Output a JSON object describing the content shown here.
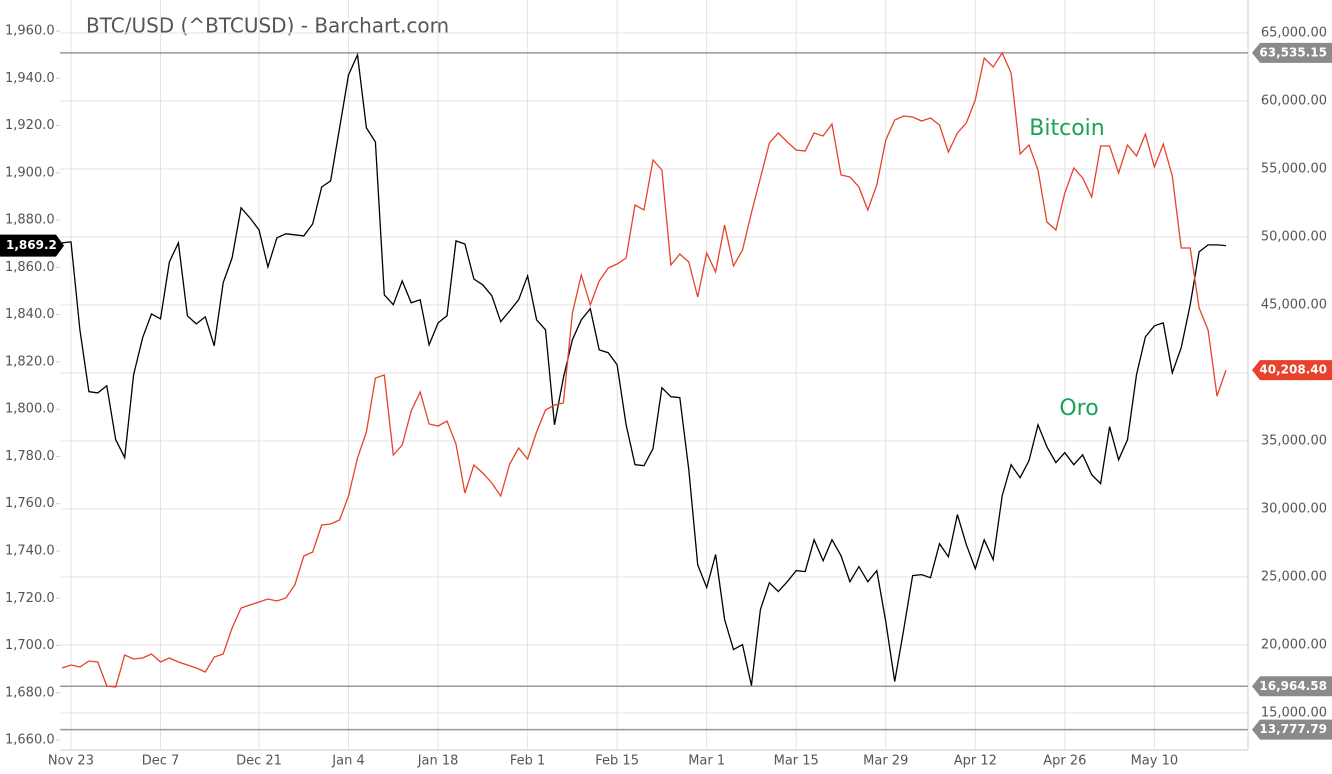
{
  "chart_data": {
    "type": "line",
    "title": "BTC/USD (^BTCUSD) - Barchart.com",
    "categories": [
      null,
      "Nov 23",
      null,
      null,
      null,
      null,
      null,
      null,
      null,
      null,
      null,
      "Dec 7",
      null,
      null,
      null,
      null,
      null,
      null,
      null,
      null,
      null,
      null,
      "Dec 21",
      null,
      null,
      null,
      null,
      null,
      null,
      null,
      null,
      null,
      "Jan 4",
      null,
      null,
      null,
      null,
      null,
      null,
      null,
      null,
      null,
      "Jan 18",
      null,
      null,
      null,
      null,
      null,
      null,
      null,
      null,
      null,
      "Feb 1",
      null,
      null,
      null,
      null,
      null,
      null,
      null,
      null,
      null,
      "Feb 15",
      null,
      null,
      null,
      null,
      null,
      null,
      null,
      null,
      null,
      "Mar 1",
      null,
      null,
      null,
      null,
      null,
      null,
      null,
      null,
      null,
      "Mar 15",
      null,
      null,
      null,
      null,
      null,
      null,
      null,
      null,
      null,
      "Mar 29",
      null,
      null,
      null,
      null,
      null,
      null,
      null,
      null,
      null,
      "Apr 12",
      null,
      null,
      null,
      null,
      null,
      null,
      null,
      null,
      null,
      "Apr 26",
      null,
      null,
      null,
      null,
      null,
      null,
      null,
      null,
      null,
      "May 10",
      null,
      null,
      null,
      null,
      null,
      null,
      null,
      null
    ],
    "series": [
      {
        "name": "Oro",
        "color": "#000000",
        "axis": "y",
        "last_value_label": "1,869.2",
        "values": [
          1870.4,
          1870.8,
          1833.6,
          1807.4,
          1806.9,
          1809.9,
          1787.1,
          1779.5,
          1814.6,
          1830.2,
          1840.3,
          1838.2,
          1862.3,
          1870.4,
          1839.5,
          1836.1,
          1839.1,
          1826.8,
          1853.5,
          1864.0,
          1885.2,
          1880.9,
          1875.9,
          1860.2,
          1872.5,
          1874.2,
          1873.8,
          1873.3,
          1878.4,
          1894.0,
          1896.6,
          1919.0,
          1941.4,
          1949.9,
          1919.0,
          1913.1,
          1848.4,
          1844.2,
          1854.3,
          1845.0,
          1846.3,
          1827.2,
          1836.5,
          1839.5,
          1871.2,
          1869.9,
          1855.1,
          1852.6,
          1848.0,
          1837.0,
          1841.6,
          1846.3,
          1856.4,
          1837.8,
          1833.6,
          1793.4,
          1813.3,
          1829.4,
          1837.8,
          1842.5,
          1825.1,
          1823.9,
          1818.8,
          1793.4,
          1776.5,
          1776.1,
          1783.3,
          1809.1,
          1805.3,
          1804.9,
          1774.4,
          1734.2,
          1724.5,
          1738.5,
          1711.0,
          1698.3,
          1700.4,
          1683.1,
          1715.2,
          1726.6,
          1722.8,
          1727.0,
          1731.7,
          1731.3,
          1744.8,
          1735.9,
          1744.8,
          1738.0,
          1727.0,
          1733.4,
          1727.0,
          1731.7,
          1710.1,
          1684.8,
          1706.7,
          1729.6,
          1730.0,
          1728.7,
          1743.1,
          1737.6,
          1755.4,
          1742.7,
          1732.5,
          1744.8,
          1736.3,
          1763.4,
          1776.5,
          1771.0,
          1778.2,
          1793.4,
          1784.1,
          1777.4,
          1781.6,
          1776.5,
          1780.7,
          1772.3,
          1768.5,
          1792.6,
          1778.6,
          1787.1,
          1814.6,
          1830.6,
          1835.3,
          1836.5,
          1815.4,
          1826.0,
          1844.2,
          1866.6,
          1869.5,
          1869.5,
          1869.2
        ]
      },
      {
        "name": "Bitcoin",
        "color": "#e8412c",
        "axis": "y2",
        "last_value_label": "40,208.40",
        "values": [
          18308,
          18529,
          18382,
          18823,
          18750,
          16985,
          16911,
          19264,
          18970,
          19044,
          19338,
          18750,
          19044,
          18750,
          18529,
          18308,
          18014,
          19117,
          19338,
          21250,
          22720,
          22941,
          23161,
          23382,
          23235,
          23456,
          24411,
          26544,
          26838,
          28823,
          28897,
          29191,
          30956,
          33750,
          35662,
          39632,
          39853,
          33970,
          34706,
          37206,
          38603,
          36250,
          36103,
          36470,
          34779,
          31176,
          33235,
          32647,
          31911,
          30956,
          33309,
          34485,
          33676,
          35662,
          37279,
          37647,
          37794,
          44412,
          47206,
          45000,
          46765,
          47720,
          48015,
          48456,
          52353,
          51985,
          55662,
          54926,
          47941,
          48750,
          48162,
          45588,
          48823,
          47426,
          50882,
          47868,
          49044,
          51765,
          54338,
          56912,
          57647,
          56985,
          56397,
          56323,
          57647,
          57426,
          58309,
          54559,
          54412,
          53676,
          51985,
          53823,
          57132,
          58603,
          58897,
          58823,
          58529,
          58750,
          58235,
          56250,
          57647,
          58382,
          60073,
          63162,
          62500,
          63535,
          62059,
          56103,
          56765,
          54926,
          51103,
          50515,
          53235,
          55073,
          54338,
          52941,
          56691,
          56691,
          54706,
          56765,
          55956,
          57573,
          55147,
          56838,
          54485,
          49191,
          49191,
          44779,
          43162,
          38309,
          40208.4
        ]
      }
    ],
    "ylim": [
      1655.8,
      1968.9
    ],
    "yticks": [
      {
        "value": 1660,
        "label": "1,660.0"
      },
      {
        "value": 1680,
        "label": "1,680.0"
      },
      {
        "value": 1700,
        "label": "1,700.0"
      },
      {
        "value": 1720,
        "label": "1,720.0"
      },
      {
        "value": 1740,
        "label": "1,740.0"
      },
      {
        "value": 1760,
        "label": "1,760.0"
      },
      {
        "value": 1780,
        "label": "1,780.0"
      },
      {
        "value": 1800,
        "label": "1,800.0"
      },
      {
        "value": 1820,
        "label": "1,820.0"
      },
      {
        "value": 1840,
        "label": "1,840.0"
      },
      {
        "value": 1860,
        "label": "1,860.0"
      },
      {
        "value": 1880,
        "label": "1,880.0"
      },
      {
        "value": 1900,
        "label": "1,900.0"
      },
      {
        "value": 1920,
        "label": "1,920.0"
      },
      {
        "value": 1940,
        "label": "1,940.0"
      },
      {
        "value": 1960,
        "label": "1,960.0"
      }
    ],
    "y2lim": [
      12280,
      66690
    ],
    "y2ticks": [
      {
        "value": 15000,
        "label": "15,000.00"
      },
      {
        "value": 20000,
        "label": "20,000.00"
      },
      {
        "value": 25000,
        "label": "25,000.00"
      },
      {
        "value": 30000,
        "label": "30,000.00"
      },
      {
        "value": 35000,
        "label": "35,000.00"
      },
      {
        "value": 40000,
        "label": "40,000.00"
      },
      {
        "value": 45000,
        "label": "45,000.00"
      },
      {
        "value": 50000,
        "label": "50,000.00"
      },
      {
        "value": 55000,
        "label": "55,000.00"
      },
      {
        "value": 60000,
        "label": "60,000.00"
      },
      {
        "value": 65000,
        "label": "65,000.00"
      }
    ],
    "reference_lines": [
      {
        "value": 63535.15,
        "label": "63,535.15"
      },
      {
        "value": 16964.58,
        "label": "16,964.58"
      },
      {
        "value": 13777.79,
        "label": "13,777.79"
      }
    ],
    "grid": true
  }
}
